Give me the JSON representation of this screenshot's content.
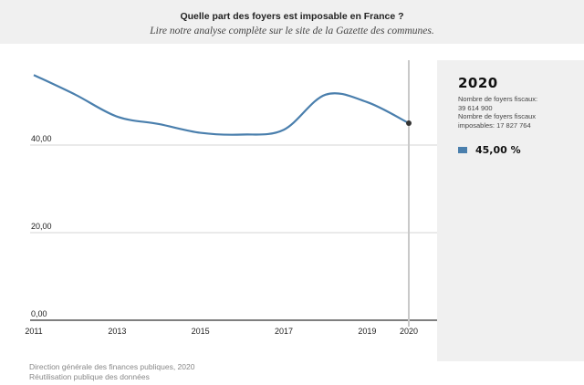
{
  "header": {
    "title": "Quelle part des foyers est imposable en France ?",
    "subtitle": "Lire notre analyse complète sur le site de la Gazette des communes."
  },
  "chart_data": {
    "type": "line",
    "x": [
      2011,
      2012,
      2013,
      2014,
      2015,
      2016,
      2017,
      2018,
      2019,
      2020
    ],
    "series": [
      {
        "values": [
          56.0,
          51.5,
          46.5,
          44.8,
          42.8,
          42.4,
          43.5,
          51.5,
          49.8,
          45.0
        ]
      }
    ],
    "x_ticks": [
      "2011",
      "2013",
      "2015",
      "2017",
      "2019",
      "2020"
    ],
    "y_ticks": [
      "0,00",
      "20,00",
      "40,00"
    ],
    "ylim": [
      0,
      60
    ],
    "xlim": [
      2011,
      2020
    ],
    "line_color": "#4a7fad",
    "highlight_x": 2020,
    "grid": true
  },
  "panel": {
    "year": "2020",
    "info_line1": "Nombre de foyers fiscaux:",
    "info_line2": "39 614 900",
    "info_line3": "Nombre de foyers fiscaux",
    "info_line4": "imposables: 17 827 764",
    "legend_value": "45,00 %"
  },
  "footer": {
    "source": "Direction générale des finances publiques, 2020",
    "note": "Réutilisation publique des données"
  }
}
